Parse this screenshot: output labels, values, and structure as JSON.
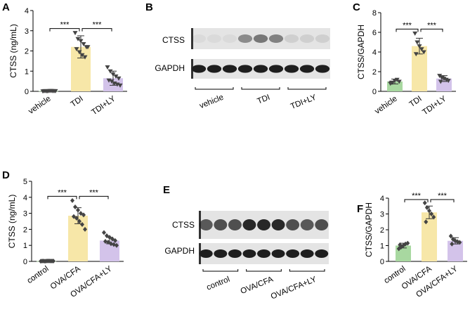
{
  "colors": {
    "green": "#a8d8a0",
    "yellow": "#f7e7a8",
    "purple": "#d3c3ea",
    "axis": "#000000",
    "blot_bg": "#e4e4e4",
    "band": "#1e1e1e"
  },
  "panels": {
    "A": "A",
    "B": "B",
    "C": "C",
    "D": "D",
    "E": "E",
    "F": "F"
  },
  "sig": "***",
  "blots": {
    "B": {
      "rows": [
        "CTSS",
        "GAPDH"
      ],
      "groups": [
        "vehicle",
        "TDI",
        "TDI+LY"
      ],
      "ctss_intensity": [
        0.05,
        0.05,
        0.05,
        0.45,
        0.55,
        0.5,
        0.1,
        0.1,
        0.1
      ],
      "gapdh_intensity": [
        1,
        1,
        1,
        1,
        1,
        1,
        1,
        1,
        1
      ]
    },
    "E": {
      "rows": [
        "CTSS",
        "GAPDH"
      ],
      "groups": [
        "control",
        "OVA/CFA",
        "OVA/CFA+LY"
      ],
      "ctss_intensity": [
        0.7,
        0.75,
        0.75,
        0.95,
        0.95,
        0.95,
        0.75,
        0.7,
        0.75
      ],
      "gapdh_intensity": [
        1,
        1,
        1,
        1,
        1,
        1,
        1,
        1,
        1
      ]
    }
  },
  "chart_data": [
    {
      "panel": "A",
      "type": "bar",
      "ylabel": "CTSS (ng/mL)",
      "ylim": [
        0,
        4
      ],
      "yticks": [
        0,
        1,
        2,
        3,
        4
      ],
      "categories": [
        "vehicle",
        "TDI",
        "TDI+LY"
      ],
      "values": [
        0.02,
        2.2,
        0.65
      ],
      "errors": [
        0.01,
        0.55,
        0.35
      ],
      "marker": "triangle-down",
      "points": [
        [
          0.01,
          0.02,
          0.02,
          0.03,
          0.02,
          0.02,
          0.01,
          0.03,
          0.02,
          0.02
        ],
        [
          2.9,
          2.6,
          2.5,
          2.35,
          2.2,
          2.1,
          1.95,
          1.8,
          1.7,
          2.2
        ],
        [
          1.2,
          1.0,
          0.85,
          0.75,
          0.65,
          0.55,
          0.5,
          0.4,
          0.35,
          0.3
        ]
      ],
      "comparisons": [
        [
          0,
          1
        ],
        [
          1,
          2
        ]
      ]
    },
    {
      "panel": "C",
      "type": "bar",
      "ylabel": "CTSS/GAPDH",
      "ylim": [
        0,
        8
      ],
      "yticks": [
        0,
        2,
        4,
        6,
        8
      ],
      "categories": [
        "vehicle",
        "TDI",
        "TDI+LY"
      ],
      "values": [
        1.0,
        4.6,
        1.3
      ],
      "errors": [
        0.25,
        0.8,
        0.3
      ],
      "marker": "triangle-down",
      "points": [
        [
          0.8,
          0.9,
          1.1,
          1.2,
          1.0,
          0.9
        ],
        [
          5.9,
          5.0,
          4.6,
          4.3,
          4.0,
          3.8
        ],
        [
          1.6,
          1.4,
          1.3,
          1.2,
          1.1,
          1.0
        ]
      ],
      "comparisons": [
        [
          0,
          1
        ],
        [
          1,
          2
        ]
      ]
    },
    {
      "panel": "D",
      "type": "bar",
      "ylabel": "CTSS (ng/mL)",
      "ylim": [
        0,
        5
      ],
      "yticks": [
        0,
        1,
        2,
        3,
        4,
        5
      ],
      "categories": [
        "control",
        "OVA/CFA",
        "OVA/CFA+LY"
      ],
      "values": [
        0.02,
        2.85,
        1.3
      ],
      "errors": [
        0.01,
        0.5,
        0.2
      ],
      "marker": "diamond",
      "points": [
        [
          0.01,
          0.02,
          0.02,
          0.03,
          0.02,
          0.02,
          0.01,
          0.03,
          0.02,
          0.02
        ],
        [
          3.8,
          3.4,
          3.2,
          3.0,
          2.9,
          2.8,
          2.7,
          2.5,
          2.3,
          2.0
        ],
        [
          1.8,
          1.6,
          1.5,
          1.4,
          1.3,
          1.25,
          1.2,
          1.1,
          1.05,
          1.0
        ]
      ],
      "comparisons": [
        [
          0,
          1
        ],
        [
          1,
          2
        ]
      ]
    },
    {
      "panel": "F",
      "type": "bar",
      "ylabel": "CTSS/GAPDH",
      "ylim": [
        0,
        4
      ],
      "yticks": [
        0,
        1,
        2,
        3,
        4
      ],
      "categories": [
        "control",
        "OVA/CFA",
        "OVA/CFA+LY"
      ],
      "values": [
        1.0,
        3.1,
        1.3
      ],
      "errors": [
        0.15,
        0.4,
        0.2
      ],
      "marker": "diamond",
      "points": [
        [
          0.8,
          0.9,
          1.0,
          1.1,
          1.15,
          1.05
        ],
        [
          3.7,
          3.4,
          3.2,
          3.0,
          2.8,
          2.5
        ],
        [
          1.6,
          1.4,
          1.3,
          1.25,
          1.2,
          1.1
        ]
      ],
      "comparisons": [
        [
          0,
          1
        ],
        [
          1,
          2
        ]
      ]
    }
  ]
}
